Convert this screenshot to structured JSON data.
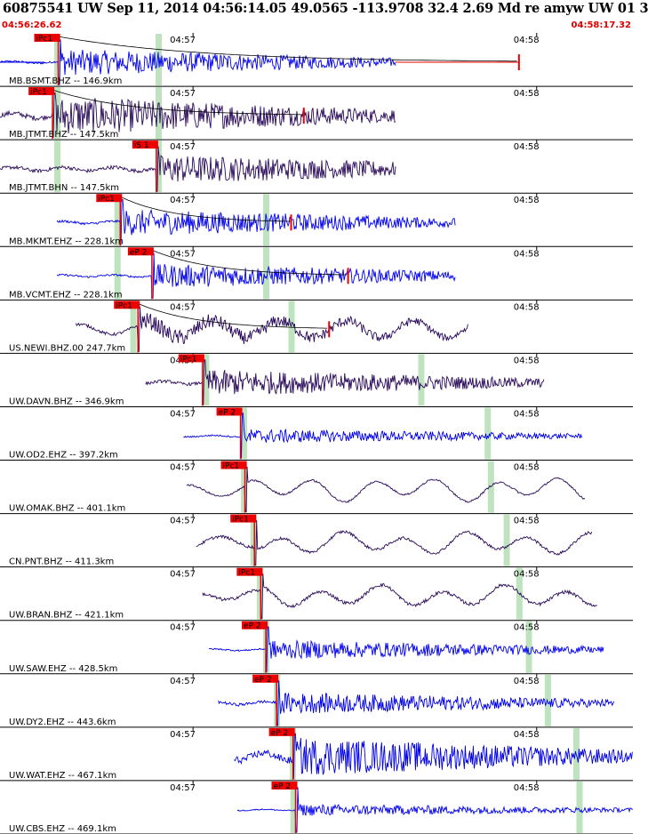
{
  "header": {
    "title": "60875541 UW Sep 11, 2014 04:56:14.05    49.0565 -113.9708 32.4 2.69 Md re amyw UW 01   3",
    "time_start": "04:56:26.62",
    "time_end": "04:58:17.32"
  },
  "colors": {
    "blue": "#0000ee",
    "dark": "#2a0a5a",
    "pick": "#ee0000",
    "window": "#bfe3bf",
    "grid": "#000000"
  },
  "traces": [
    {
      "label": "MB.BSMT.BHZ -- 146.9km",
      "color": "blue",
      "start": 0.0,
      "end": 0.625,
      "style": "hf",
      "amp": 0.55,
      "noise": 0.08,
      "pick": "iPc1",
      "pick_x": 0.092,
      "windows": [
        0.09,
        0.25
      ],
      "coda": true,
      "marker_x": 0.82,
      "pre_line": true
    },
    {
      "label": "MB.JTMT.BHZ -- 147.5km",
      "color": "dark",
      "start": 0.0,
      "end": 0.625,
      "style": "hf",
      "amp": 0.8,
      "noise": 0.2,
      "pick": "iPc1",
      "pick_x": 0.083,
      "windows": [
        0.09,
        0.25
      ],
      "coda": true,
      "marker_x": 0.48,
      "pre_line": false
    },
    {
      "label": "MB.JTMT.BHN -- 147.5km",
      "color": "dark",
      "start": 0.0,
      "end": 0.625,
      "style": "hf",
      "amp": 0.6,
      "noise": 0.15,
      "pick": "iS 1",
      "pick_x": 0.247,
      "windows": [
        0.09,
        0.25
      ],
      "coda": false,
      "marker_x": null,
      "pre_line": false
    },
    {
      "label": "MB.MKMT.EHZ -- 228.1km",
      "color": "blue",
      "start": 0.09,
      "end": 0.72,
      "style": "hf",
      "amp": 0.55,
      "noise": 0.1,
      "pick": "iPc1",
      "pick_x": 0.19,
      "windows": [
        0.185,
        0.42
      ],
      "coda": true,
      "marker_x": 0.46,
      "pre_line": false
    },
    {
      "label": "MB.VCMT.EHZ -- 228.1km",
      "color": "blue",
      "start": 0.09,
      "end": 0.72,
      "style": "hf",
      "amp": 0.5,
      "noise": 0.08,
      "pick": "eP 2",
      "pick_x": 0.24,
      "windows": [
        0.185,
        0.42
      ],
      "coda": true,
      "marker_x": 0.55,
      "pre_line": false
    },
    {
      "label": "US.NEWI.BHZ.00 247.7km",
      "color": "dark",
      "start": 0.12,
      "end": 0.74,
      "style": "mix",
      "amp": 0.5,
      "noise": 0.12,
      "pick": "iPc1",
      "pick_x": 0.218,
      "windows": [
        0.21,
        0.46
      ],
      "coda": true,
      "marker_x": 0.52,
      "pre_line": false
    },
    {
      "label": "UW.DAVN.BHZ -- 346.9km",
      "color": "dark",
      "start": 0.23,
      "end": 0.86,
      "style": "hf",
      "amp": 0.55,
      "noise": 0.12,
      "pick": "iPc1",
      "pick_x": 0.32,
      "windows": [
        0.325,
        0.665
      ],
      "coda": false,
      "marker_x": null,
      "pre_line": false
    },
    {
      "label": "UW.OD2.EHZ -- 397.2km",
      "color": "blue",
      "start": 0.29,
      "end": 0.92,
      "style": "hf",
      "amp": 0.3,
      "noise": 0.06,
      "pick": "eP 2",
      "pick_x": 0.38,
      "windows": [
        0.385,
        0.77
      ],
      "coda": false,
      "marker_x": null,
      "pre_line": false
    },
    {
      "label": "UW.OMAK.BHZ -- 401.1km",
      "color": "dark",
      "start": 0.295,
      "end": 0.925,
      "style": "lf",
      "amp": 0.65,
      "noise": 0.08,
      "pick": "iPc1",
      "pick_x": 0.387,
      "windows": [
        0.385,
        0.775
      ],
      "coda": false,
      "marker_x": null,
      "pre_line": false
    },
    {
      "label": "CN.PNT.BHZ -- 411.3km",
      "color": "dark",
      "start": 0.31,
      "end": 0.935,
      "style": "lf",
      "amp": 0.6,
      "noise": 0.12,
      "pick": "iPc1",
      "pick_x": 0.402,
      "windows": [
        0.4,
        0.8
      ],
      "coda": false,
      "marker_x": null,
      "pre_line": false
    },
    {
      "label": "UW.BRAN.BHZ -- 421.1km",
      "color": "dark",
      "start": 0.32,
      "end": 0.945,
      "style": "lf",
      "amp": 0.6,
      "noise": 0.14,
      "pick": "iPc1",
      "pick_x": 0.412,
      "windows": [
        0.41,
        0.82
      ],
      "coda": false,
      "marker_x": null,
      "pre_line": false
    },
    {
      "label": "UW.SAW.EHZ -- 428.5km",
      "color": "blue",
      "start": 0.33,
      "end": 0.955,
      "style": "hf",
      "amp": 0.4,
      "noise": 0.06,
      "pick": "eP 2",
      "pick_x": 0.42,
      "windows": [
        0.42,
        0.835
      ],
      "coda": false,
      "marker_x": null,
      "pre_line": false
    },
    {
      "label": "UW.DY2.EHZ -- 443.6km",
      "color": "blue",
      "start": 0.345,
      "end": 0.97,
      "style": "hf",
      "amp": 0.45,
      "noise": 0.12,
      "pick": "eP 2",
      "pick_x": 0.437,
      "windows": [
        0.437,
        0.865
      ],
      "coda": false,
      "marker_x": null,
      "pre_line": false
    },
    {
      "label": "UW.WAT.EHZ -- 467.1km",
      "color": "blue",
      "start": 0.37,
      "end": 1.0,
      "style": "hf",
      "amp": 0.8,
      "noise": 0.3,
      "pick": "eP 2",
      "pick_x": 0.463,
      "windows": [
        0.462,
        0.91
      ],
      "coda": false,
      "marker_x": null,
      "pre_line": false
    },
    {
      "label": "UW.CBS.EHZ -- 469.1km",
      "color": "blue",
      "start": 0.375,
      "end": 1.0,
      "style": "hf",
      "amp": 0.25,
      "noise": 0.05,
      "pick": "eP 2",
      "pick_x": 0.467,
      "windows": [
        0.463,
        0.915
      ],
      "coda": false,
      "marker_x": null,
      "pre_line": false
    }
  ],
  "ticks": [
    {
      "label": "04:57",
      "x": 0.305
    },
    {
      "label": "04:58",
      "x": 0.848
    }
  ]
}
